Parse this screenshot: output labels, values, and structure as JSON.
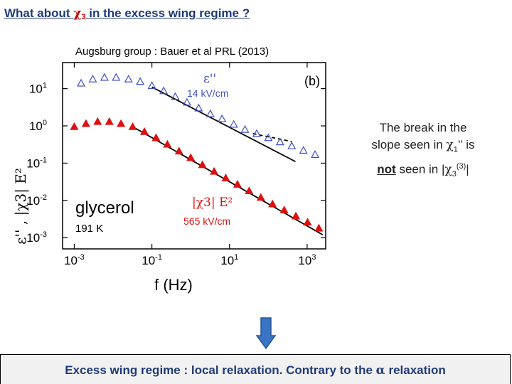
{
  "slide": {
    "title_pre": "What about ",
    "title_chi": "χ",
    "title_sub": "3",
    "title_post": " in the excess wing regime ?",
    "citation": "Augsburg group : Bauer et al PRL (2013)",
    "note": {
      "line1": "The break in the",
      "line2_pre": "slope seen in ",
      "chi": "χ",
      "sub1": "1",
      "line2_post": "’’ is",
      "not_word": "not",
      "line3_mid": " seen in |",
      "sub3": "3",
      "sup3": "(3)",
      "line3_end": "|"
    },
    "banner": {
      "pre": "Excess wing regime : local relaxation. Contrary to the ",
      "alpha": "α",
      "post": " relaxation"
    }
  },
  "chart_data": {
    "type": "scatter",
    "panel_label": "(b)",
    "xlabel": "f (Hz)",
    "ylabel": "ε'' , |χ3| E²",
    "x_scale": "log",
    "y_scale": "log",
    "xlim": [
      0.0005,
      3000
    ],
    "ylim": [
      0.0005,
      50
    ],
    "x_ticks": [
      {
        "value": 0.001,
        "mant": "10",
        "exp": "-3"
      },
      {
        "value": 0.1,
        "mant": "10",
        "exp": "-1"
      },
      {
        "value": 10,
        "mant": "10",
        "exp": "1"
      },
      {
        "value": 1000,
        "mant": "10",
        "exp": "3"
      }
    ],
    "y_ticks": [
      {
        "value": 10,
        "mant": "10",
        "exp": "1"
      },
      {
        "value": 1,
        "mant": "10",
        "exp": "0"
      },
      {
        "value": 0.1,
        "mant": "10",
        "exp": "-1"
      },
      {
        "value": 0.01,
        "mant": "10",
        "exp": "-2"
      },
      {
        "value": 0.001,
        "mant": "10",
        "exp": "-3"
      }
    ],
    "annotations": {
      "sample": "glycerol",
      "temperature": "191 K",
      "eps_label": "ε''",
      "eps_field": "14 kV/cm",
      "chi_label": "|χ3| E²",
      "chi_field": "565 kV/cm"
    },
    "colors": {
      "eps": "#3d4fc4",
      "chi": "#dd1111",
      "fit": "#000000"
    },
    "series": [
      {
        "name": "ε''",
        "marker": "open-triangle",
        "x": [
          0.0015,
          0.003,
          0.006,
          0.012,
          0.025,
          0.05,
          0.1,
          0.2,
          0.4,
          0.8,
          1.6,
          3.2,
          6.4,
          12.8,
          25,
          50,
          100,
          200,
          400,
          800,
          1600
        ],
        "y": [
          14,
          18,
          20,
          20,
          18,
          15.5,
          12,
          8.7,
          6.1,
          4.3,
          3.0,
          2.1,
          1.55,
          1.1,
          0.8,
          0.62,
          0.48,
          0.37,
          0.29,
          0.22,
          0.17
        ]
      },
      {
        "name": "|χ3| E²",
        "marker": "filled-triangle",
        "x": [
          0.001,
          0.002,
          0.004,
          0.008,
          0.016,
          0.032,
          0.064,
          0.128,
          0.25,
          0.5,
          1,
          2,
          4,
          8,
          16,
          32,
          64,
          128,
          256,
          512,
          1024,
          2000
        ],
        "y": [
          0.95,
          1.15,
          1.3,
          1.3,
          1.15,
          0.95,
          0.7,
          0.48,
          0.32,
          0.21,
          0.14,
          0.09,
          0.06,
          0.04,
          0.027,
          0.018,
          0.012,
          0.008,
          0.0055,
          0.0038,
          0.0026,
          0.0018
        ]
      }
    ],
    "fit_lines": [
      {
        "x": [
          0.1,
          500
        ],
        "y": [
          11,
          0.11
        ],
        "style": "solid"
      },
      {
        "x": [
          40,
          400
        ],
        "y": [
          0.62,
          0.38
        ],
        "style": "dashed"
      },
      {
        "x": [
          0.035,
          2500
        ],
        "y": [
          0.9,
          0.0012
        ],
        "style": "solid"
      }
    ]
  }
}
